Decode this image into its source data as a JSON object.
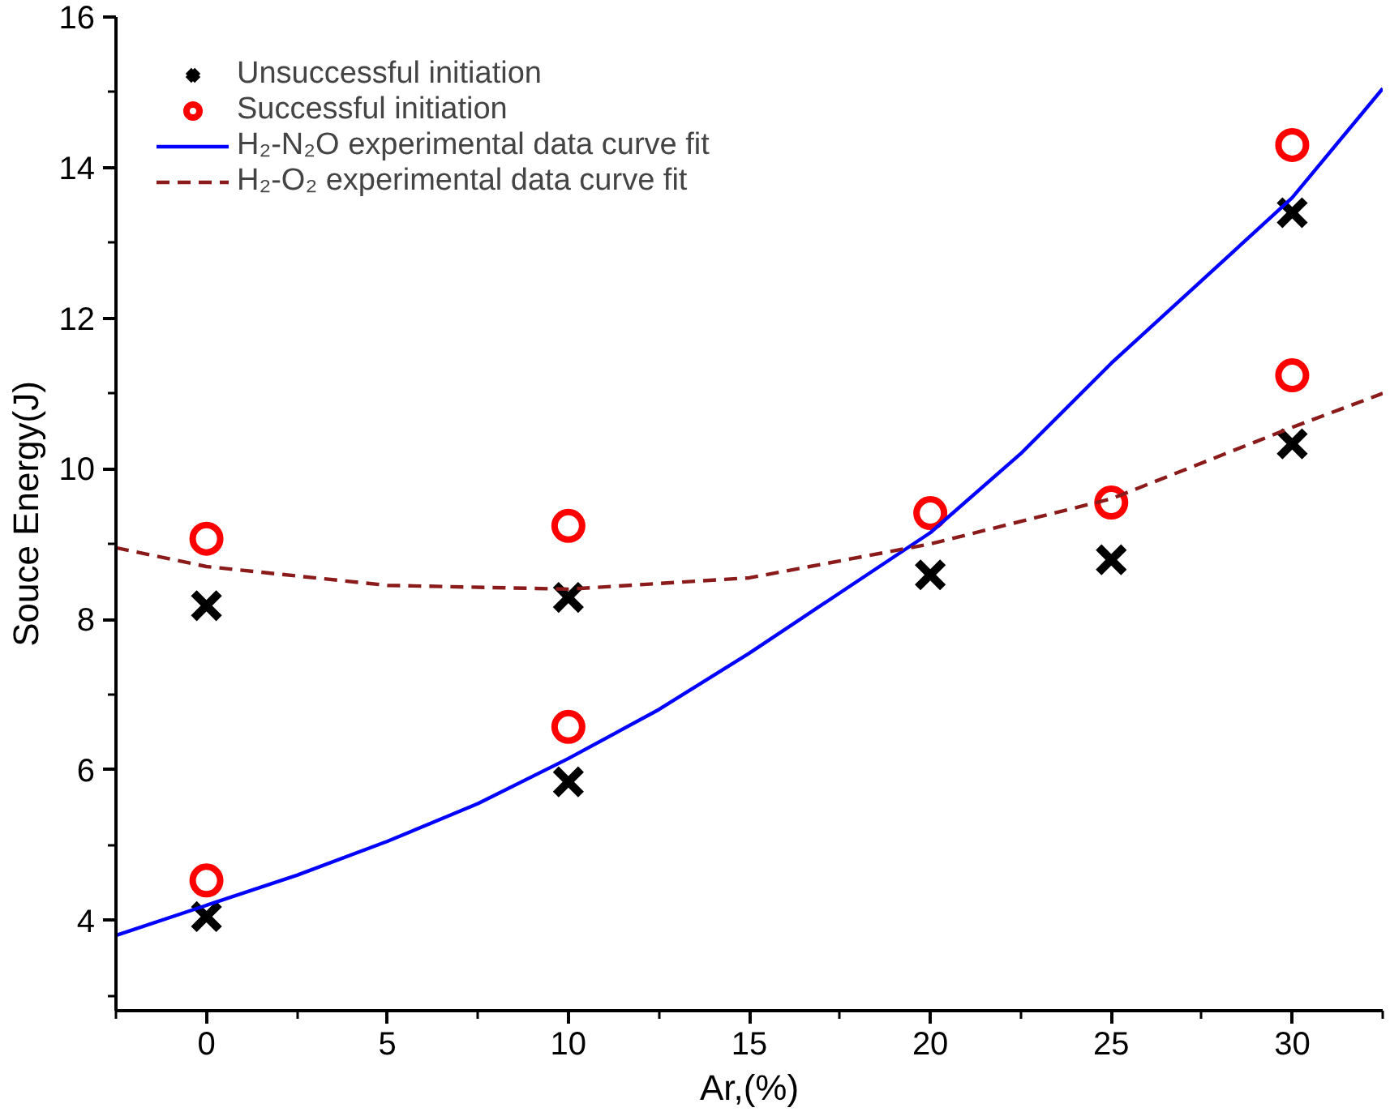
{
  "chart_data": {
    "type": "scatter",
    "xlabel": "Ar,(%)",
    "ylabel": "Souce Energy(J)",
    "xlim": [
      -2.5,
      32.5
    ],
    "ylim": [
      2.8,
      16
    ],
    "xticks": [
      {
        "value": -2.5,
        "label": null
      },
      0,
      {
        "value": 2.5,
        "label": null
      },
      5,
      {
        "value": 7.5,
        "label": null
      },
      10,
      {
        "value": 12.5,
        "label": null
      },
      15,
      {
        "value": 17.5,
        "label": null
      },
      20,
      {
        "value": 22.5,
        "label": null
      },
      25,
      {
        "value": 27.5,
        "label": null
      },
      30,
      {
        "value": 32.5,
        "label": null
      }
    ],
    "yticks": [
      {
        "value": 3,
        "label": null
      },
      4,
      {
        "value": 5,
        "label": null
      },
      6,
      {
        "value": 7,
        "label": null
      },
      8,
      {
        "value": 9,
        "label": null
      },
      10,
      {
        "value": 11,
        "label": null
      },
      12,
      {
        "value": 13,
        "label": null
      },
      14,
      {
        "value": 15,
        "label": null
      },
      16
    ],
    "grid": false,
    "legend": "top left",
    "series": [
      {
        "name": "Unsuccessful initiation",
        "marker": "cross",
        "color": "#000000",
        "x": [
          0,
          0,
          10,
          10,
          20,
          25,
          30,
          30
        ],
        "values": [
          8.18,
          4.05,
          8.29,
          5.84,
          8.59,
          8.79,
          10.33,
          13.4
        ]
      },
      {
        "name": "Successful initiation",
        "marker": "circle",
        "color": "#ff0000",
        "x": [
          0,
          0,
          10,
          10,
          20,
          25,
          30,
          30
        ],
        "values": [
          9.07,
          4.53,
          9.24,
          6.57,
          9.41,
          9.55,
          11.24,
          14.3
        ]
      },
      {
        "name": "H₂-N₂O experimental data curve fit",
        "type": "line",
        "line_style": "solid",
        "color": "#0000ff",
        "x": [
          -2.5,
          0,
          2.5,
          5,
          7.5,
          10,
          12.5,
          15,
          17.5,
          20,
          22.5,
          25,
          27.5,
          30,
          32.5
        ],
        "values": [
          3.8,
          4.2,
          4.6,
          5.05,
          5.55,
          6.15,
          6.8,
          7.55,
          8.35,
          9.15,
          10.2,
          11.4,
          12.5,
          13.6,
          15.05
        ]
      },
      {
        "name": "H₂-O₂ experimental data curve fit",
        "type": "line",
        "line_style": "dashed",
        "color": "#8b1a1a",
        "x": [
          -2.5,
          0,
          5,
          10,
          15,
          20,
          25,
          30,
          32.5
        ],
        "values": [
          8.95,
          8.7,
          8.45,
          8.4,
          8.55,
          9.0,
          9.6,
          10.55,
          11.0
        ]
      }
    ]
  }
}
